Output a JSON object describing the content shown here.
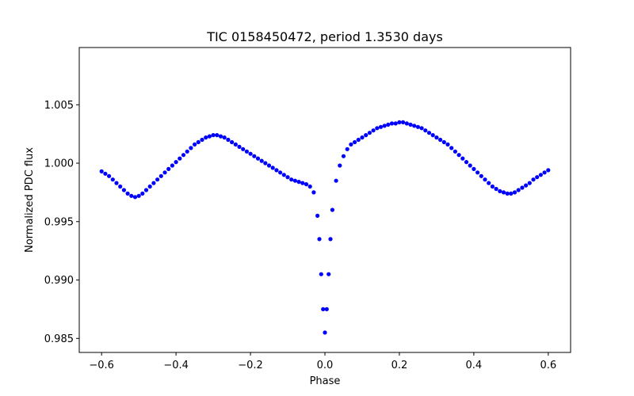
{
  "chart_data": {
    "type": "scatter",
    "title": "TIC 0158450472, period 1.3530 days",
    "xlabel": "Phase",
    "ylabel": "Normalized PDC flux",
    "xlim": [
      -0.66,
      0.66
    ],
    "ylim": [
      0.9838,
      1.0099
    ],
    "xticks": [
      -0.6,
      -0.4,
      -0.2,
      0.0,
      0.2,
      0.4,
      0.6
    ],
    "xtick_labels": [
      "−0.6",
      "−0.4",
      "−0.2",
      "0.0",
      "0.2",
      "0.4",
      "0.6"
    ],
    "yticks": [
      0.985,
      0.99,
      0.995,
      1.0,
      1.005
    ],
    "ytick_labels": [
      "0.985",
      "0.990",
      "0.995",
      "1.000",
      "1.005"
    ],
    "grid": false,
    "legend": "none",
    "marker_color": "#0000ff",
    "series": [
      {
        "x": [
          -0.6,
          -0.59,
          -0.58,
          -0.57,
          -0.56,
          -0.55,
          -0.54,
          -0.53,
          -0.52,
          -0.51,
          -0.5,
          -0.49,
          -0.48,
          -0.47,
          -0.46,
          -0.45,
          -0.44,
          -0.43,
          -0.42,
          -0.41,
          -0.4,
          -0.39,
          -0.38,
          -0.37,
          -0.36,
          -0.35,
          -0.34,
          -0.33,
          -0.32,
          -0.31,
          -0.3,
          -0.29,
          -0.28,
          -0.27,
          -0.26,
          -0.25,
          -0.24,
          -0.23,
          -0.22,
          -0.21,
          -0.2,
          -0.19,
          -0.18,
          -0.17,
          -0.16,
          -0.15,
          -0.14,
          -0.13,
          -0.12,
          -0.11,
          -0.1,
          -0.09,
          -0.08,
          -0.07,
          -0.06,
          -0.05,
          -0.04,
          -0.03,
          -0.02,
          -0.015,
          -0.01,
          -0.005,
          0.0,
          0.005,
          0.01,
          0.015,
          0.02,
          0.03,
          0.04,
          0.05,
          0.06,
          0.07,
          0.08,
          0.09,
          0.1,
          0.11,
          0.12,
          0.13,
          0.14,
          0.15,
          0.16,
          0.17,
          0.18,
          0.19,
          0.2,
          0.21,
          0.22,
          0.23,
          0.24,
          0.25,
          0.26,
          0.27,
          0.28,
          0.29,
          0.3,
          0.31,
          0.32,
          0.33,
          0.34,
          0.35,
          0.36,
          0.37,
          0.38,
          0.39,
          0.4,
          0.41,
          0.42,
          0.43,
          0.44,
          0.45,
          0.46,
          0.47,
          0.48,
          0.49,
          0.5,
          0.51,
          0.52,
          0.53,
          0.54,
          0.55,
          0.56,
          0.57,
          0.58,
          0.59,
          0.6
        ],
        "y": [
          0.9993,
          0.9991,
          0.9989,
          0.9986,
          0.9983,
          0.998,
          0.9977,
          0.9974,
          0.9972,
          0.9971,
          0.9972,
          0.9974,
          0.9977,
          0.998,
          0.9983,
          0.9986,
          0.9989,
          0.9992,
          0.9995,
          0.9998,
          1.0001,
          1.0004,
          1.0007,
          1.001,
          1.0013,
          1.0016,
          1.0018,
          1.002,
          1.0022,
          1.0023,
          1.0024,
          1.0024,
          1.0023,
          1.0022,
          1.002,
          1.0018,
          1.0016,
          1.0014,
          1.0012,
          1.001,
          1.0008,
          1.0006,
          1.0004,
          1.0002,
          1.0,
          0.9998,
          0.9996,
          0.9994,
          0.9992,
          0.999,
          0.9988,
          0.9986,
          0.9985,
          0.9984,
          0.9983,
          0.9982,
          0.998,
          0.9975,
          0.9955,
          0.9935,
          0.9905,
          0.9875,
          0.9855,
          0.9875,
          0.9905,
          0.9935,
          0.996,
          0.9985,
          0.9998,
          1.0006,
          1.0012,
          1.0016,
          1.0018,
          1.002,
          1.0022,
          1.0024,
          1.0026,
          1.0028,
          1.003,
          1.0031,
          1.0032,
          1.0033,
          1.0034,
          1.0034,
          1.0035,
          1.0035,
          1.0034,
          1.0033,
          1.0032,
          1.0031,
          1.003,
          1.0028,
          1.0026,
          1.0024,
          1.0022,
          1.002,
          1.0018,
          1.0016,
          1.0013,
          1.001,
          1.0007,
          1.0004,
          1.0001,
          0.9998,
          0.9995,
          0.9992,
          0.9989,
          0.9986,
          0.9983,
          0.998,
          0.9978,
          0.9976,
          0.9975,
          0.9974,
          0.9974,
          0.9975,
          0.9977,
          0.9979,
          0.9981,
          0.9983,
          0.9986,
          0.9988,
          0.999,
          0.9992,
          0.9994
        ]
      }
    ]
  }
}
